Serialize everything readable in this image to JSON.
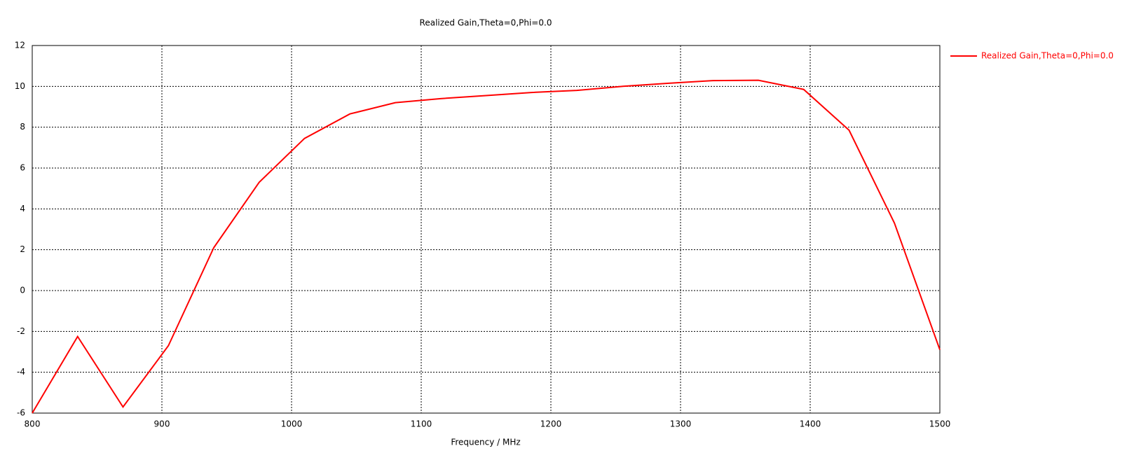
{
  "chart_data": {
    "type": "line",
    "title": "Realized Gain,Theta=0,Phi=0.0",
    "x_label": "Frequency / MHz",
    "x": [
      800,
      835,
      870,
      905,
      940,
      975,
      1010,
      1045,
      1080,
      1115,
      1150,
      1185,
      1220,
      1255,
      1290,
      1325,
      1360,
      1395,
      1430,
      1465,
      1500
    ],
    "series": [
      {
        "name": "Realized Gain,Theta=0,Phi=0.0",
        "color": "#ff0000",
        "values": [
          -6,
          -2.25,
          -5.7,
          -2.7,
          2.1,
          5.3,
          7.45,
          8.65,
          9.2,
          9.4,
          9.55,
          9.7,
          9.8,
          10.0,
          10.15,
          10.28,
          10.3,
          9.85,
          7.85,
          3.3,
          -2.9
        ]
      }
    ],
    "xlim": [
      800,
      1500
    ],
    "xticks": [
      800,
      900,
      1000,
      1100,
      1200,
      1300,
      1400,
      1500
    ],
    "ylim": [
      -6,
      12
    ],
    "yticks": [
      -6,
      -4,
      -2,
      0,
      2,
      4,
      6,
      8,
      10,
      12
    ],
    "grid": true,
    "legend": "right"
  }
}
